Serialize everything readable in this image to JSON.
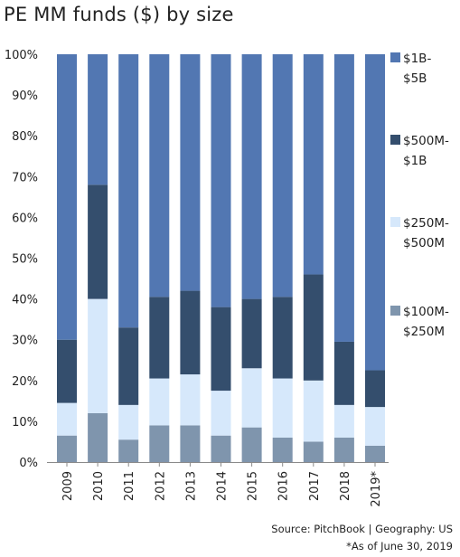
{
  "chart_data": {
    "type": "bar",
    "stacked": true,
    "percent": true,
    "title": "PE MM funds ($) by size",
    "categories": [
      "2009",
      "2010",
      "2011",
      "2012",
      "2013",
      "2014",
      "2015",
      "2016",
      "2017",
      "2018",
      "2019*"
    ],
    "ylim": [
      0,
      100
    ],
    "yticks": [
      "0%",
      "10%",
      "20%",
      "30%",
      "40%",
      "50%",
      "60%",
      "70%",
      "80%",
      "90%",
      "100%"
    ],
    "legend_position": "right",
    "series": [
      {
        "name": "$100M-$250M",
        "legend_lines": [
          "$100M-",
          "$250M"
        ],
        "color": "#7f95ad",
        "values": [
          6.5,
          12,
          5.5,
          9,
          9,
          6.5,
          8.5,
          6,
          5,
          6,
          4
        ]
      },
      {
        "name": "$250M-$500M",
        "legend_lines": [
          "$250M-",
          "$500M"
        ],
        "color": "#d6e8fb",
        "values": [
          8,
          28,
          8.5,
          11.5,
          12.5,
          11,
          14.5,
          14.5,
          15,
          8,
          9.5
        ]
      },
      {
        "name": "$500M-$1B",
        "legend_lines": [
          "$500M-",
          "$1B"
        ],
        "color": "#344e6d",
        "values": [
          15.5,
          28,
          19,
          20,
          20.5,
          20.5,
          17,
          20,
          26,
          15.5,
          9
        ]
      },
      {
        "name": "$1B-$5B",
        "legend_lines": [
          "$1B-",
          "$5B"
        ],
        "color": "#5277b2",
        "values": [
          70,
          32,
          67,
          59.5,
          58,
          62,
          60,
          59.5,
          54,
          70.5,
          77.5
        ]
      }
    ]
  },
  "footer": {
    "source": "Source: PitchBook | Geography: US",
    "note": "*As of June 30, 2019"
  }
}
